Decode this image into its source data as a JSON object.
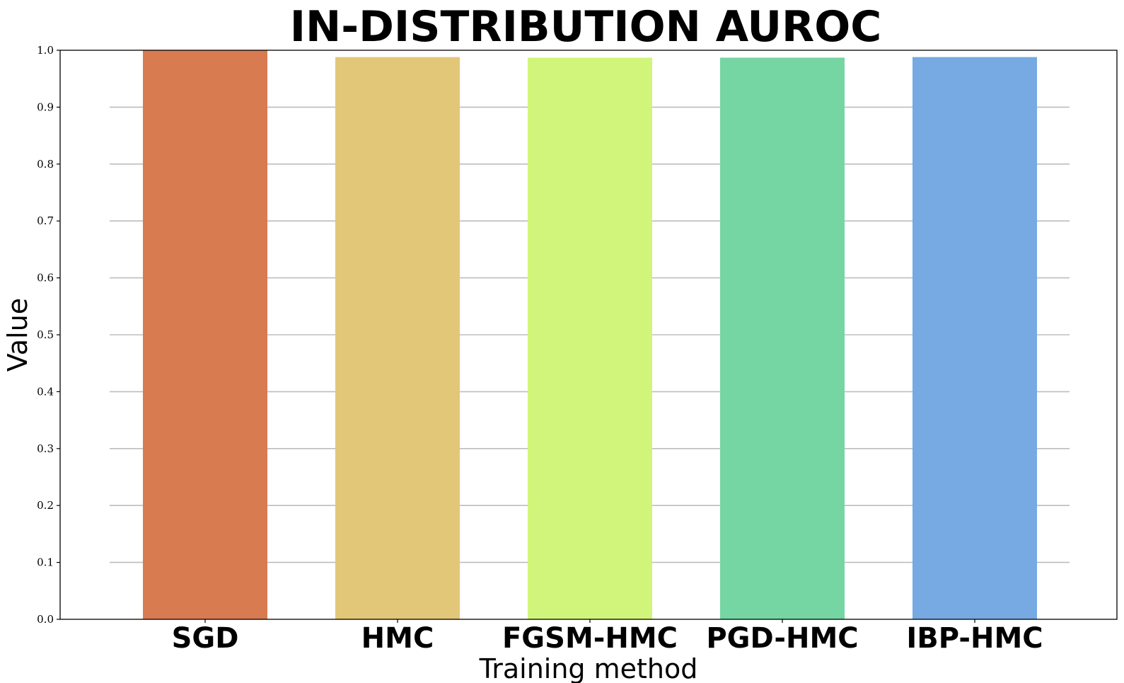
{
  "chart_data": {
    "type": "bar",
    "title": "IN-DISTRIBUTION AUROC",
    "xlabel": "Training method",
    "ylabel": "Value",
    "categories": [
      "SGD",
      "HMC",
      "FGSM-HMC",
      "PGD-HMC",
      "IBP-HMC"
    ],
    "values": [
      1.0,
      0.988,
      0.987,
      0.987,
      0.988
    ],
    "colors": [
      "#d97b50",
      "#e3c778",
      "#d0f57a",
      "#75d5a3",
      "#77a9e2"
    ],
    "ylim": [
      0,
      1.0
    ],
    "yticks": [
      "0.0",
      "0.1",
      "0.2",
      "0.3",
      "0.4",
      "0.5",
      "0.6",
      "0.7",
      "0.8",
      "0.9",
      "1.0"
    ],
    "grid": true,
    "legend": false
  }
}
